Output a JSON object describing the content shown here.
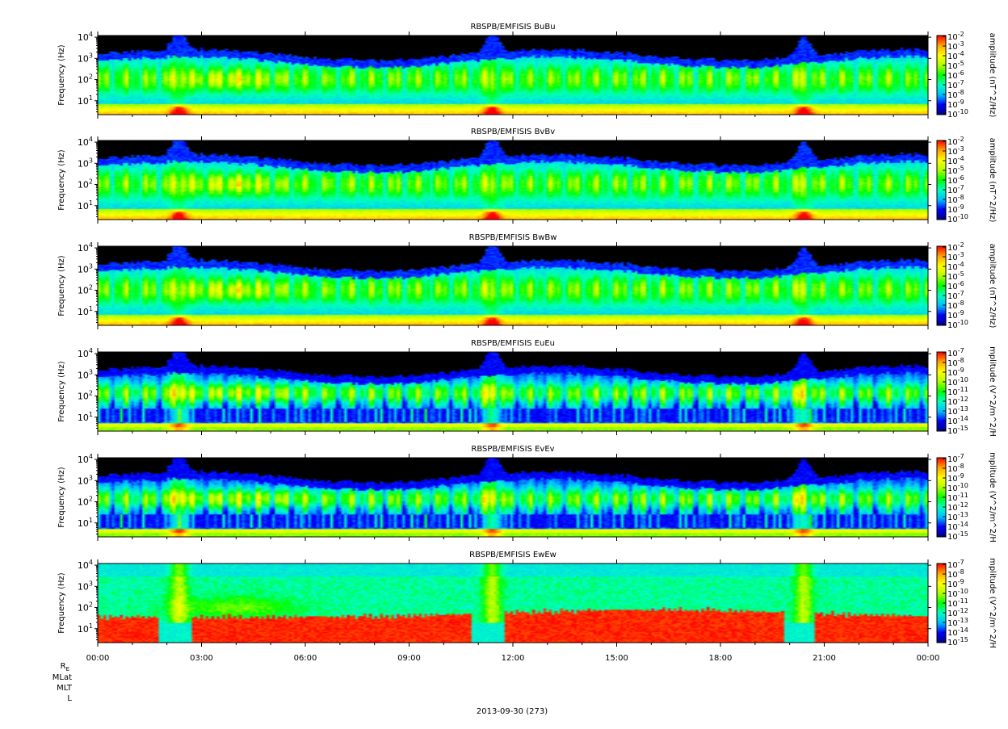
{
  "chart_data": {
    "type": "heatmap",
    "date_label": "2013-09-30 (273)",
    "ephemeris_labels": [
      "R",
      "E",
      "MLat",
      "MLT",
      "L"
    ],
    "x": {
      "ticks": [
        "00:00",
        "03:00",
        "06:00",
        "09:00",
        "12:00",
        "15:00",
        "18:00",
        "21:00",
        "00:00"
      ],
      "tick_hours": [
        0,
        3,
        6,
        9,
        12,
        15,
        18,
        21,
        24
      ],
      "range_hours": [
        0,
        24
      ]
    },
    "y": {
      "label": "Frequency (Hz)",
      "scale": "log",
      "range_hz": [
        2.2,
        12000
      ],
      "ticks": [
        {
          "value": 10,
          "base": "10",
          "exp": "1"
        },
        {
          "value": 100,
          "base": "10",
          "exp": "2"
        },
        {
          "value": 1000,
          "base": "10",
          "exp": "3"
        },
        {
          "value": 10000,
          "base": "10",
          "exp": "4"
        }
      ]
    },
    "colormap": [
      "#000080",
      "#0000ff",
      "#00bfff",
      "#00ffc0",
      "#00ff00",
      "#b0ff00",
      "#ffff00",
      "#ffa500",
      "#ff0000"
    ],
    "panels": [
      {
        "title": "RBSPB/EMFISIS  BuBu",
        "cbar_label": "amplitude (nT^2/Hz)",
        "cbar_ticks": [
          {
            "base": "10",
            "exp": "-2"
          },
          {
            "base": "10",
            "exp": "-3"
          },
          {
            "base": "10",
            "exp": "-4"
          },
          {
            "base": "10",
            "exp": "-5"
          },
          {
            "base": "10",
            "exp": "-6"
          },
          {
            "base": "10",
            "exp": "-7"
          },
          {
            "base": "10",
            "exp": "-8"
          },
          {
            "base": "10",
            "exp": "-9"
          },
          {
            "base": "10",
            "exp": "-10"
          }
        ],
        "kind": "B"
      },
      {
        "title": "RBSPB/EMFISIS  BvBv",
        "cbar_label": "amplitude (nT^2/Hz)",
        "cbar_ticks": [
          {
            "base": "10",
            "exp": "-2"
          },
          {
            "base": "10",
            "exp": "-3"
          },
          {
            "base": "10",
            "exp": "-4"
          },
          {
            "base": "10",
            "exp": "-5"
          },
          {
            "base": "10",
            "exp": "-6"
          },
          {
            "base": "10",
            "exp": "-7"
          },
          {
            "base": "10",
            "exp": "-8"
          },
          {
            "base": "10",
            "exp": "-9"
          },
          {
            "base": "10",
            "exp": "-10"
          }
        ],
        "kind": "B"
      },
      {
        "title": "RBSPB/EMFISIS  BwBw",
        "cbar_label": "amplitude (nT^2/Hz)",
        "cbar_ticks": [
          {
            "base": "10",
            "exp": "-2"
          },
          {
            "base": "10",
            "exp": "-3"
          },
          {
            "base": "10",
            "exp": "-4"
          },
          {
            "base": "10",
            "exp": "-5"
          },
          {
            "base": "10",
            "exp": "-6"
          },
          {
            "base": "10",
            "exp": "-7"
          },
          {
            "base": "10",
            "exp": "-8"
          },
          {
            "base": "10",
            "exp": "-9"
          },
          {
            "base": "10",
            "exp": "-10"
          }
        ],
        "kind": "B"
      },
      {
        "title": "RBSPB/EMFISIS  EuEu",
        "cbar_label": "mplitude (V^2/m^2/H",
        "cbar_ticks": [
          {
            "base": "10",
            "exp": "-7"
          },
          {
            "base": "10",
            "exp": "-8"
          },
          {
            "base": "10",
            "exp": "-9"
          },
          {
            "base": "10",
            "exp": "-10"
          },
          {
            "base": "10",
            "exp": "-11"
          },
          {
            "base": "10",
            "exp": "-12"
          },
          {
            "base": "10",
            "exp": "-13"
          },
          {
            "base": "10",
            "exp": "-14"
          },
          {
            "base": "10",
            "exp": "-15"
          }
        ],
        "kind": "E"
      },
      {
        "title": "RBSPB/EMFISIS  EvEv",
        "cbar_label": "mplitude (V^2/m^2/H",
        "cbar_ticks": [
          {
            "base": "10",
            "exp": "-7"
          },
          {
            "base": "10",
            "exp": "-8"
          },
          {
            "base": "10",
            "exp": "-9"
          },
          {
            "base": "10",
            "exp": "-10"
          },
          {
            "base": "10",
            "exp": "-11"
          },
          {
            "base": "10",
            "exp": "-12"
          },
          {
            "base": "10",
            "exp": "-13"
          },
          {
            "base": "10",
            "exp": "-14"
          },
          {
            "base": "10",
            "exp": "-15"
          }
        ],
        "kind": "E"
      },
      {
        "title": "RBSPB/EMFISIS  EwEw",
        "cbar_label": "mplitude (V^2/m^2/H",
        "cbar_ticks": [
          {
            "base": "10",
            "exp": "-7"
          },
          {
            "base": "10",
            "exp": "-8"
          },
          {
            "base": "10",
            "exp": "-9"
          },
          {
            "base": "10",
            "exp": "-10"
          },
          {
            "base": "10",
            "exp": "-11"
          },
          {
            "base": "10",
            "exp": "-12"
          },
          {
            "base": "10",
            "exp": "-13"
          },
          {
            "base": "10",
            "exp": "-14"
          },
          {
            "base": "10",
            "exp": "-15"
          }
        ],
        "kind": "Ew"
      }
    ]
  }
}
